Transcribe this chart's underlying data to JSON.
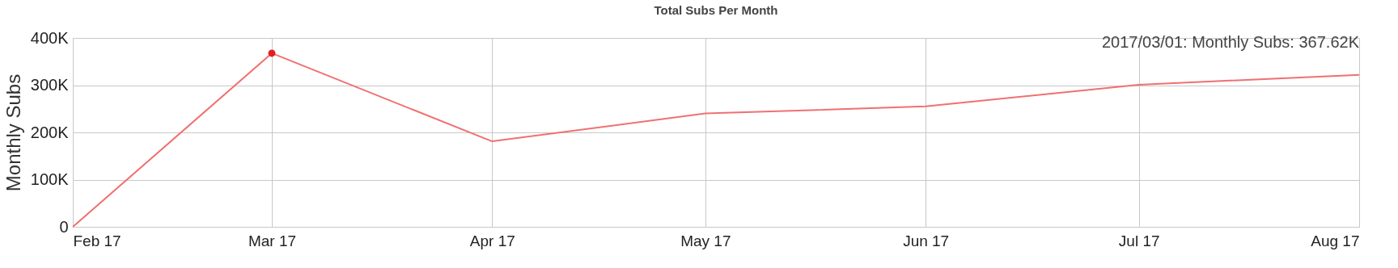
{
  "chart_data": {
    "type": "line",
    "title": "Total Subs Per Month",
    "ylabel": "Monthly Subs",
    "x": [
      "2017-02",
      "2017-03",
      "2017-04",
      "2017-05",
      "2017-06",
      "2017-07",
      "2017-08"
    ],
    "series": [
      {
        "color": "#f07070",
        "values": [
          0,
          367620,
          181000,
          240000,
          255000,
          301000,
          322000
        ]
      },
      {
        "type": "scatter",
        "marker": "circle",
        "color": "#e02020",
        "x": [
          "2017-03"
        ],
        "values": [
          367620
        ]
      }
    ],
    "xlim": [
      "2017-02",
      "2017-08"
    ],
    "xticks": [
      {
        "value": "2017-02",
        "label": "Feb 17"
      },
      {
        "value": "2017-03",
        "label": "Mar 17"
      },
      {
        "value": "2017-04",
        "label": "Apr 17"
      },
      {
        "value": "2017-05",
        "label": "May 17"
      },
      {
        "value": "2017-06",
        "label": "Jun 17"
      },
      {
        "value": "2017-07",
        "label": "Jul 17"
      },
      {
        "value": "2017-08",
        "label": "Aug 17"
      }
    ],
    "ylim": [
      0,
      400000
    ],
    "yticks": [
      {
        "value": 0,
        "label": "0"
      },
      {
        "value": 100000,
        "label": "100K"
      },
      {
        "value": 200000,
        "label": "200K"
      },
      {
        "value": 300000,
        "label": "300K"
      },
      {
        "value": 400000,
        "label": "400K"
      }
    ],
    "grid": true,
    "line_style": "solid",
    "annotations": [
      "2017/03/01: Monthly Subs: 367.62K"
    ]
  }
}
